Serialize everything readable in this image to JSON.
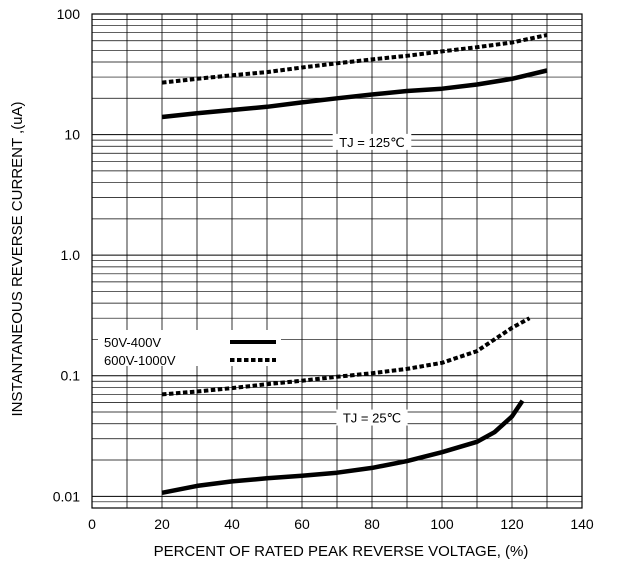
{
  "chart_data": {
    "type": "line",
    "title": "",
    "xlabel": "PERCENT OF RATED PEAK REVERSE VOLTAGE,  (%)",
    "ylabel": "INSTANTANEOUS REVERSE CURRENT ,(uA)",
    "xlim": [
      0,
      140
    ],
    "ylim": [
      0.008,
      100
    ],
    "yscale": "log",
    "grid": true,
    "x_ticks": [
      0,
      20,
      40,
      60,
      80,
      100,
      120,
      140
    ],
    "x_tick_labels": [
      "0",
      "20",
      "40",
      "60",
      "80",
      "100",
      "120",
      "140"
    ],
    "y_ticks": [
      0.01,
      0.1,
      1.0,
      10,
      100
    ],
    "y_tick_labels": [
      "0.01",
      "0.1",
      "1.0",
      "10",
      "100"
    ],
    "legend": {
      "placement": "middle-left",
      "entries": [
        {
          "label": "50V-400V",
          "style": "solid"
        },
        {
          "label": "600V-1000V",
          "style": "dashed"
        }
      ]
    },
    "annotations": [
      {
        "text": "TJ = 125℃",
        "x": 80,
        "y": 8.7
      },
      {
        "text": "TJ = 25℃",
        "x": 80,
        "y": 0.045
      }
    ],
    "series": [
      {
        "group": "TJ = 125℃",
        "style": "dashed",
        "x": [
          20,
          30,
          40,
          50,
          60,
          70,
          80,
          90,
          100,
          110,
          120,
          130
        ],
        "y": [
          27,
          29,
          31,
          33,
          36,
          39,
          42,
          45,
          49,
          53,
          58,
          67
        ]
      },
      {
        "group": "TJ = 125℃",
        "style": "solid",
        "x": [
          20,
          30,
          40,
          50,
          60,
          70,
          80,
          90,
          100,
          110,
          120,
          130
        ],
        "y": [
          14,
          15,
          16,
          17,
          18.5,
          20,
          21.5,
          23,
          24,
          26,
          29,
          34
        ]
      },
      {
        "group": "TJ = 25℃",
        "style": "dashed",
        "x": [
          20,
          30,
          40,
          50,
          60,
          70,
          80,
          90,
          100,
          110,
          115,
          120,
          125
        ],
        "y": [
          0.07,
          0.074,
          0.079,
          0.085,
          0.091,
          0.098,
          0.105,
          0.114,
          0.128,
          0.16,
          0.2,
          0.25,
          0.3
        ]
      },
      {
        "group": "TJ = 25℃",
        "style": "solid",
        "x": [
          20,
          30,
          40,
          50,
          60,
          70,
          80,
          90,
          100,
          110,
          115,
          120,
          123
        ],
        "y": [
          0.0107,
          0.0122,
          0.0133,
          0.0141,
          0.0148,
          0.0157,
          0.0172,
          0.0196,
          0.0232,
          0.0283,
          0.034,
          0.046,
          0.062
        ]
      }
    ]
  }
}
